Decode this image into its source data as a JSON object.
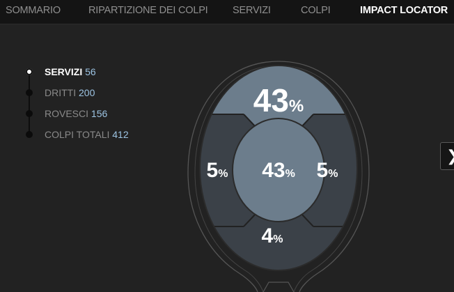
{
  "nav": {
    "tabs": [
      {
        "label": "SOMMARIO"
      },
      {
        "label": "RIPARTIZIONE DEI COLPI"
      },
      {
        "label": "SERVIZI"
      },
      {
        "label": "COLPI"
      },
      {
        "label": "IMPACT LOCATOR"
      }
    ],
    "active_index": 4
  },
  "filters": [
    {
      "label": "SERVIZI",
      "count": "56"
    },
    {
      "label": "DRITTI",
      "count": "200"
    },
    {
      "label": "ROVESCI",
      "count": "156"
    },
    {
      "label": "COLPI TOTALI",
      "count": "412"
    }
  ],
  "zones": {
    "top": {
      "value": "43",
      "unit": "%"
    },
    "left": {
      "value": "5",
      "unit": "%"
    },
    "center": {
      "value": "43",
      "unit": "%"
    },
    "right": {
      "value": "5",
      "unit": "%"
    },
    "bottom": {
      "value": "4",
      "unit": "%"
    }
  },
  "colors": {
    "highlight_zone": "#6c7d8c",
    "dark_zone": "#3b4148",
    "count_text": "#9cc3e2"
  },
  "next_icon": "chevron-right-icon",
  "next_glyph": "❯"
}
